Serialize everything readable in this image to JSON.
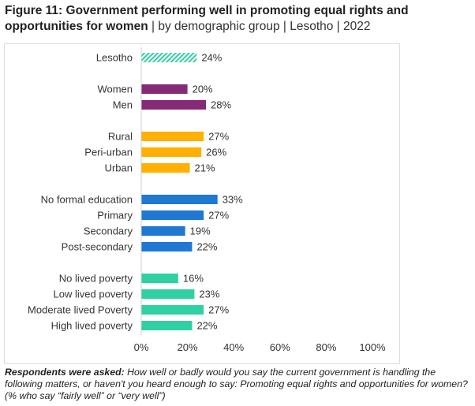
{
  "title": {
    "bold": "Figure 11: Government performing well in promoting equal rights and opportunities for women",
    "rest": " | by demographic group | Lesotho | 2022"
  },
  "note": {
    "bold": "Respondents were asked:",
    "text": " How well or badly would you say the current government is handling the following matters, or haven't you heard enough to say: Promoting equal rights and opportunities for women? (% who say “fairly well” or “very well”)"
  },
  "chart_data": {
    "type": "bar",
    "orientation": "horizontal",
    "categories": [
      "Lesotho",
      "Women",
      "Men",
      "Rural",
      "Peri-urban",
      "Urban",
      "No formal education",
      "Primary",
      "Secondary",
      "Post-secondary",
      "No lived poverty",
      "Low lived poverty",
      "Moderate lived Poverty",
      "High lived poverty"
    ],
    "values": [
      24,
      20,
      28,
      27,
      26,
      21,
      33,
      27,
      19,
      22,
      16,
      23,
      27,
      22
    ],
    "groups": [
      0,
      1,
      1,
      2,
      2,
      2,
      3,
      3,
      3,
      3,
      4,
      4,
      4,
      4
    ],
    "group_colors": [
      "#2fd1a3",
      "#862a77",
      "#ffb000",
      "#1f78d1",
      "#2fd1a3"
    ],
    "hatched": [
      true,
      false,
      false,
      false,
      false,
      false,
      false,
      false,
      false,
      false,
      false,
      false,
      false,
      false
    ],
    "xlim": [
      0,
      100
    ],
    "xticks": [
      "0%",
      "20%",
      "40%",
      "60%",
      "80%",
      "100%"
    ],
    "value_suffix": "%",
    "grid": false
  }
}
